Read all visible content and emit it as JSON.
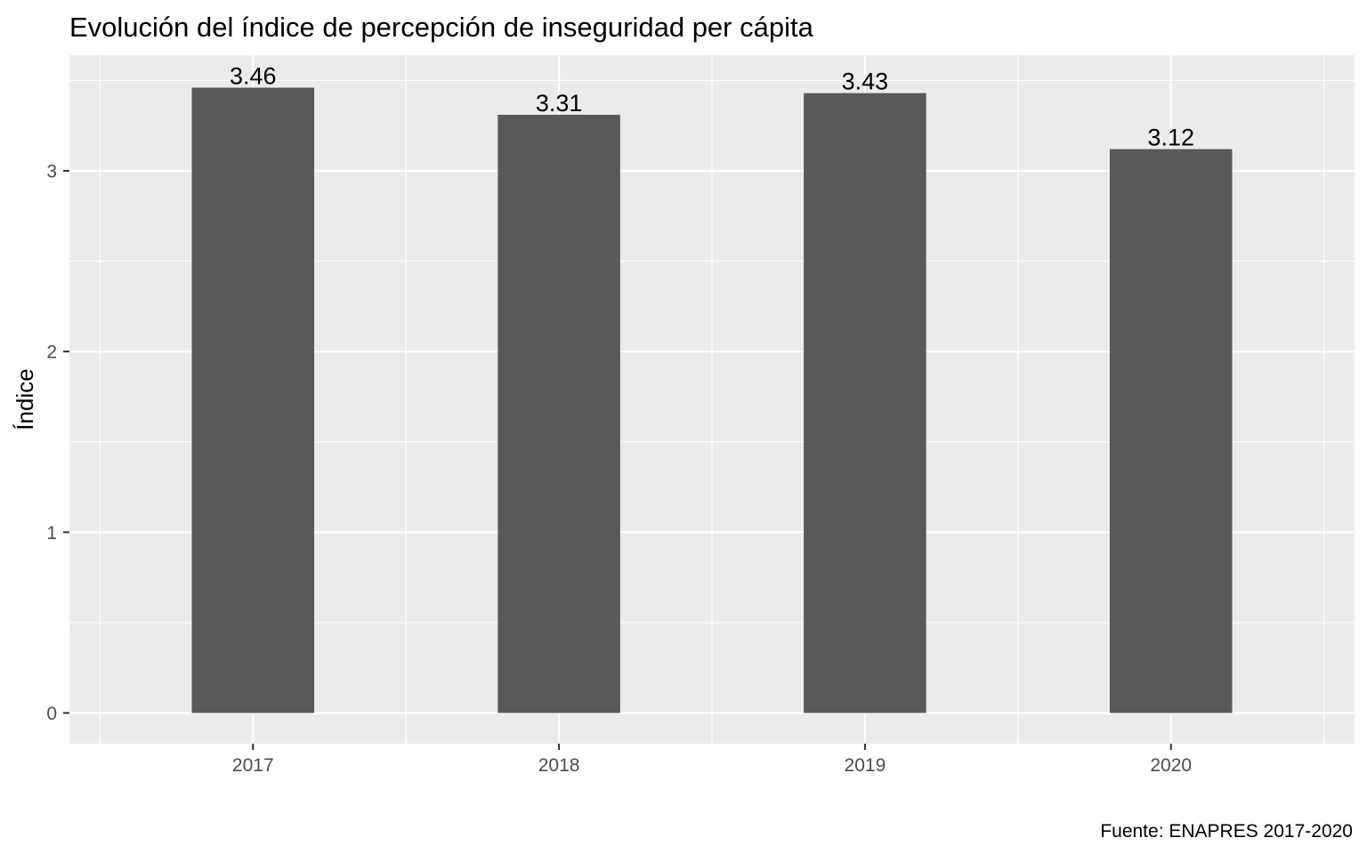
{
  "chart_data": {
    "type": "bar",
    "title": "Evolución del índice de percepción de inseguridad per cápita",
    "ylabel": "Índice",
    "xlabel": "",
    "caption": "Fuente: ENAPRES 2017-2020",
    "categories": [
      "2017",
      "2018",
      "2019",
      "2020"
    ],
    "values": [
      3.46,
      3.31,
      3.43,
      3.12
    ],
    "value_labels": [
      "3.46",
      "3.31",
      "3.43",
      "3.12"
    ],
    "y_ticks": [
      0,
      1,
      2,
      3
    ],
    "y_tick_labels": [
      "0",
      "1",
      "2",
      "3"
    ],
    "ylim": [
      -0.17,
      3.64
    ],
    "grid": true,
    "legend": "none",
    "colors": {
      "bar": "#595959",
      "panel": "#ebebeb",
      "grid": "#ffffff",
      "tick_text": "#4d4d4d",
      "tick_mark": "#333333"
    }
  }
}
